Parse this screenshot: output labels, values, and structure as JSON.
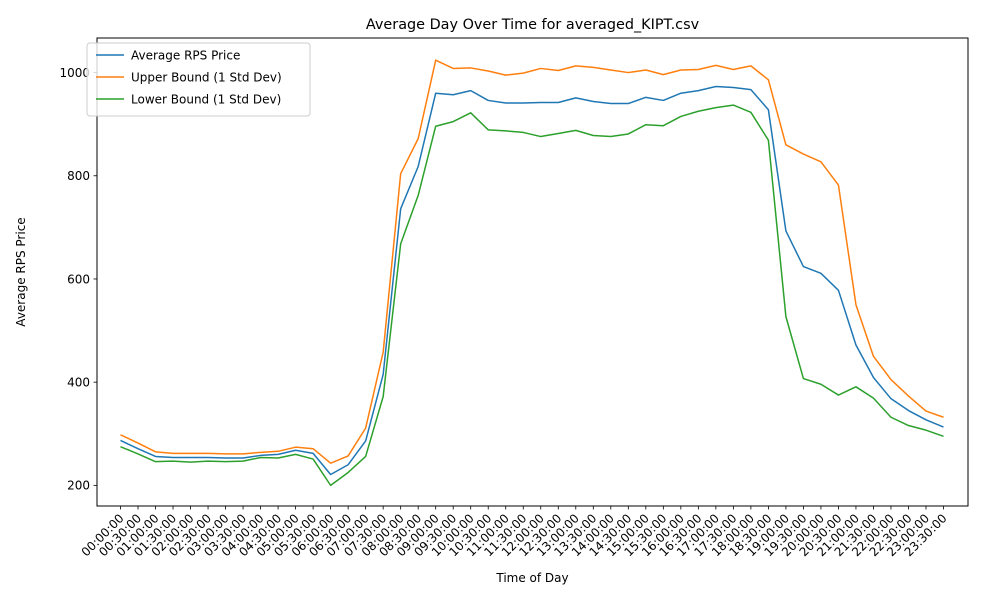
{
  "chart_data": {
    "type": "line",
    "title": "Average Day Over Time for averaged_KIPT.csv",
    "xlabel": "Time of Day",
    "ylabel": "Average RPS Price",
    "ylim": [
      160,
      1067
    ],
    "yticks": [
      200,
      400,
      600,
      800,
      1000
    ],
    "grid": false,
    "legend_position": "top-left",
    "x": [
      "00:00:00",
      "00:30:00",
      "01:00:00",
      "01:30:00",
      "02:00:00",
      "02:30:00",
      "03:00:00",
      "03:30:00",
      "04:00:00",
      "04:30:00",
      "05:00:00",
      "05:30:00",
      "06:00:00",
      "06:30:00",
      "07:00:00",
      "07:30:00",
      "08:00:00",
      "08:30:00",
      "09:00:00",
      "09:30:00",
      "10:00:00",
      "10:30:00",
      "11:00:00",
      "11:30:00",
      "12:00:00",
      "12:30:00",
      "13:00:00",
      "13:30:00",
      "14:00:00",
      "14:30:00",
      "15:00:00",
      "15:30:00",
      "16:00:00",
      "16:30:00",
      "17:00:00",
      "17:30:00",
      "18:00:00",
      "18:30:00",
      "19:00:00",
      "19:30:00",
      "20:00:00",
      "20:30:00",
      "21:00:00",
      "21:30:00",
      "22:00:00",
      "22:30:00",
      "23:00:00",
      "23:30:00"
    ],
    "series": [
      {
        "name": "Average RPS Price",
        "color": "#1f77b4",
        "values": [
          287,
          271,
          256,
          254,
          254,
          254,
          253,
          253,
          258,
          260,
          268,
          262,
          221,
          240,
          286,
          415,
          736,
          818,
          960,
          957,
          965,
          946,
          941,
          941,
          942,
          942,
          951,
          944,
          940,
          940,
          952,
          946,
          960,
          965,
          973,
          971,
          967,
          928,
          693,
          624,
          611,
          578,
          472,
          409,
          368,
          345,
          327,
          313
        ]
      },
      {
        "name": "Upper Bound (1 Std Dev)",
        "color": "#ff7f0e",
        "values": [
          298,
          282,
          265,
          262,
          262,
          262,
          261,
          261,
          264,
          266,
          274,
          271,
          243,
          257,
          311,
          458,
          804,
          872,
          1024,
          1008,
          1009,
          1003,
          995,
          999,
          1008,
          1004,
          1013,
          1010,
          1005,
          1000,
          1005,
          996,
          1005,
          1006,
          1014,
          1006,
          1013,
          986,
          860,
          842,
          827,
          782,
          550,
          450,
          405,
          373,
          344,
          332
        ]
      },
      {
        "name": "Lower Bound (1 Std Dev)",
        "color": "#2ca02c",
        "values": [
          275,
          261,
          246,
          247,
          245,
          247,
          246,
          247,
          254,
          253,
          260,
          251,
          200,
          225,
          256,
          372,
          668,
          762,
          896,
          905,
          922,
          889,
          887,
          884,
          876,
          882,
          888,
          878,
          876,
          881,
          899,
          897,
          915,
          925,
          932,
          937,
          923,
          869,
          527,
          407,
          396,
          375,
          391,
          369,
          332,
          316,
          307,
          295
        ]
      }
    ]
  }
}
